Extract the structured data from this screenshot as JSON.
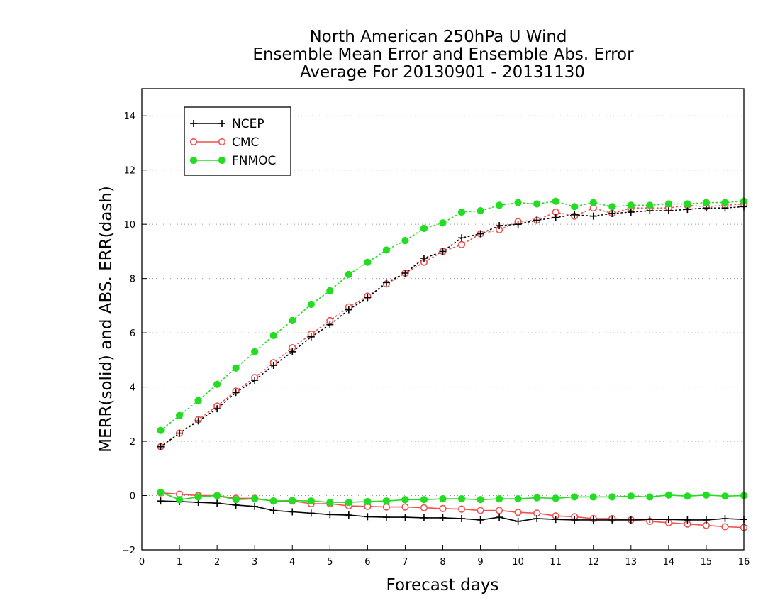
{
  "chart_data": {
    "type": "line",
    "title": [
      "North American 250hPa U Wind",
      "Ensemble Mean Error and Ensemble Abs. Error",
      "Average For 20130901 - 20131130"
    ],
    "xlabel": "Forecast days",
    "ylabel": "MERR(solid) and ABS. ERR(dash)",
    "xlim": [
      0,
      16
    ],
    "ylim": [
      -2,
      15
    ],
    "xticks": [
      0,
      1,
      2,
      3,
      4,
      5,
      6,
      7,
      8,
      9,
      10,
      11,
      12,
      13,
      14,
      15,
      16
    ],
    "yticks": [
      -2,
      0,
      2,
      4,
      6,
      8,
      10,
      12,
      14
    ],
    "grid": "horizontal-dotted",
    "legend_position": "top-left",
    "x": [
      0.5,
      1,
      1.5,
      2,
      2.5,
      3,
      3.5,
      4,
      4.5,
      5,
      5.5,
      6,
      6.5,
      7,
      7.5,
      8,
      8.5,
      9,
      9.5,
      10,
      10.5,
      11,
      11.5,
      12,
      12.5,
      13,
      13.5,
      14,
      14.5,
      15,
      15.5,
      16
    ],
    "series": [
      {
        "name": "NCEP",
        "color": "#000000",
        "marker": "plus",
        "abs_err": [
          1.8,
          2.3,
          2.75,
          3.2,
          3.8,
          4.25,
          4.8,
          5.3,
          5.85,
          6.3,
          6.85,
          7.3,
          7.85,
          8.2,
          8.75,
          9.0,
          9.5,
          9.65,
          9.95,
          10.0,
          10.15,
          10.25,
          10.35,
          10.3,
          10.4,
          10.45,
          10.5,
          10.5,
          10.55,
          10.6,
          10.6,
          10.65
        ],
        "mean_err": [
          -0.2,
          -0.22,
          -0.25,
          -0.28,
          -0.35,
          -0.4,
          -0.55,
          -0.6,
          -0.65,
          -0.7,
          -0.72,
          -0.78,
          -0.8,
          -0.8,
          -0.82,
          -0.82,
          -0.85,
          -0.9,
          -0.8,
          -0.95,
          -0.85,
          -0.88,
          -0.9,
          -0.9,
          -0.9,
          -0.9,
          -0.88,
          -0.88,
          -0.9,
          -0.9,
          -0.85,
          -0.88
        ]
      },
      {
        "name": "CMC",
        "color": "#f05050",
        "marker": "circle-open",
        "abs_err": [
          1.8,
          2.3,
          2.8,
          3.3,
          3.85,
          4.35,
          4.9,
          5.45,
          5.95,
          6.45,
          6.95,
          7.35,
          7.8,
          8.2,
          8.6,
          9.0,
          9.25,
          9.65,
          9.8,
          10.1,
          10.15,
          10.45,
          10.3,
          10.6,
          10.4,
          10.6,
          10.6,
          10.6,
          10.7,
          10.65,
          10.7,
          10.75
        ],
        "mean_err": [
          0.1,
          0.05,
          0.0,
          0.0,
          -0.1,
          -0.1,
          -0.2,
          -0.2,
          -0.3,
          -0.3,
          -0.38,
          -0.4,
          -0.42,
          -0.42,
          -0.45,
          -0.48,
          -0.5,
          -0.55,
          -0.55,
          -0.62,
          -0.65,
          -0.75,
          -0.78,
          -0.85,
          -0.85,
          -0.9,
          -0.95,
          -1.0,
          -1.05,
          -1.1,
          -1.15,
          -1.18
        ]
      },
      {
        "name": "FNMOC",
        "color": "#22dd22",
        "marker": "circle-filled",
        "abs_err": [
          2.4,
          2.95,
          3.5,
          4.1,
          4.7,
          5.3,
          5.9,
          6.45,
          7.05,
          7.55,
          8.15,
          8.6,
          9.05,
          9.4,
          9.85,
          10.05,
          10.45,
          10.5,
          10.7,
          10.8,
          10.75,
          10.85,
          10.65,
          10.8,
          10.65,
          10.7,
          10.7,
          10.75,
          10.75,
          10.8,
          10.8,
          10.85
        ],
        "mean_err": [
          0.12,
          -0.15,
          -0.05,
          0.0,
          -0.15,
          -0.12,
          -0.2,
          -0.18,
          -0.2,
          -0.25,
          -0.25,
          -0.22,
          -0.2,
          -0.15,
          -0.15,
          -0.12,
          -0.12,
          -0.15,
          -0.12,
          -0.12,
          -0.08,
          -0.1,
          -0.05,
          -0.05,
          -0.05,
          -0.02,
          -0.05,
          0.02,
          -0.02,
          0.02,
          -0.02,
          0.0
        ]
      }
    ]
  }
}
